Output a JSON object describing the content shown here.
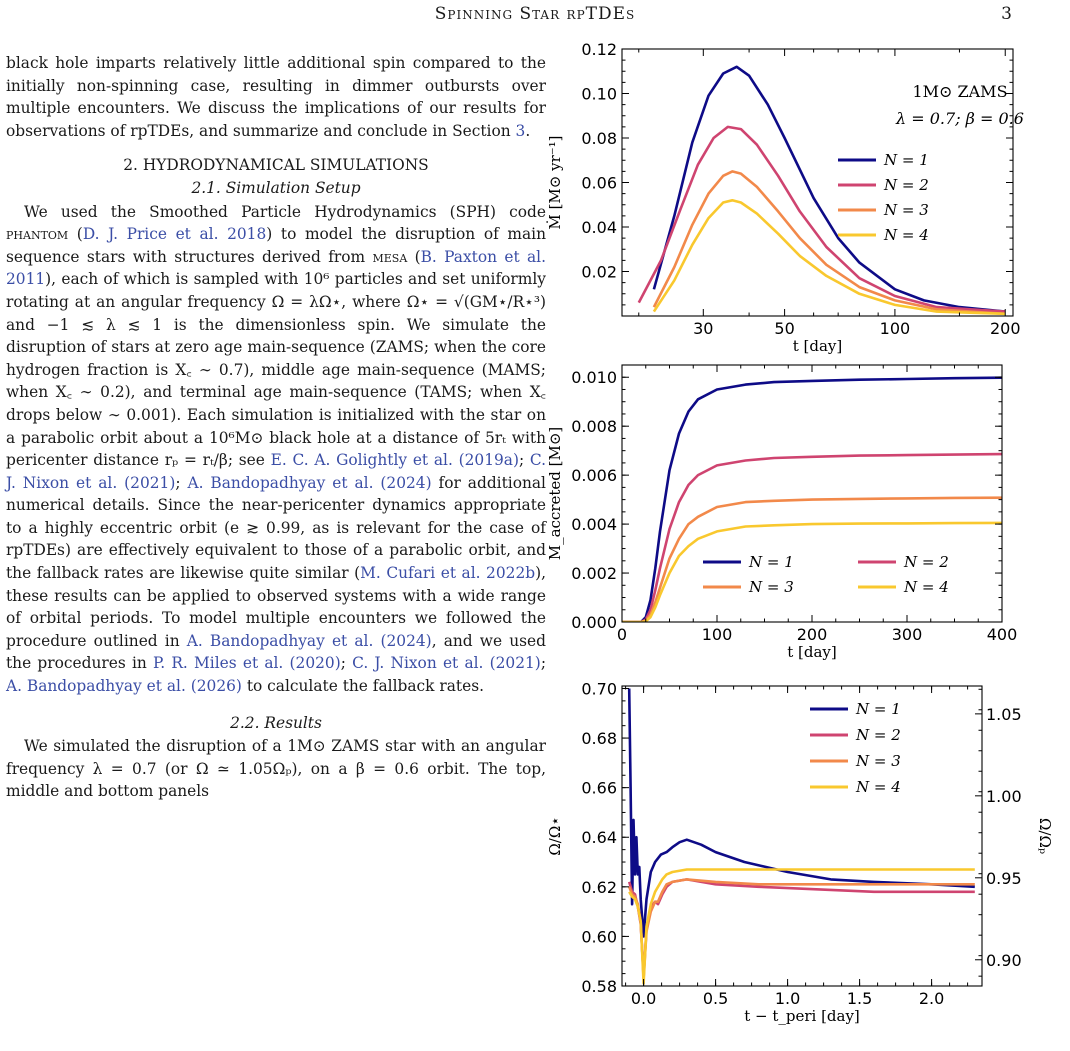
{
  "header": {
    "running_title": "Spinning Star rpTDEs",
    "page_number": "3"
  },
  "body": {
    "p1": {
      "a": "black hole imparts relatively little additional spin compared to the initially non-spinning case, resulting in dimmer outbursts over multiple encounters. We discuss the implications of our results for observations of rpTDEs, and summarize and conclude in Section ",
      "link": "3",
      "b": "."
    },
    "section_title": "2. HYDRODYNAMICAL SIMULATIONS",
    "subsection1_title": "2.1. Simulation Setup",
    "p2": {
      "s1": "We used the Smoothed Particle Hydrodynamics (SPH) code ",
      "pkg1": "phantom",
      "s2": " (",
      "c1": "D. J. Price et al. 2018",
      "s3": ") to model the disruption of main sequence stars with structures derived from ",
      "pkg2": "mesa",
      "s4": " (",
      "c2": "B. Paxton et al. 2011",
      "s5": "), each of which is sampled with 10⁶ particles and set uniformly rotating at an angular frequency Ω = λΩ⋆, where Ω⋆ = √(GM⋆/R⋆³) and −1 ≲ λ ≲ 1 is the dimensionless spin. We simulate the disruption of stars at zero age main-sequence (ZAMS; when the core hydrogen fraction is X꜀ ∼ 0.7), middle age main-sequence (MAMS; when X꜀ ∼ 0.2), and terminal age main-sequence (TAMS; when X꜀ drops below ∼ 0.001). Each simulation is initialized with the star on a parabolic orbit about a 10⁶M⊙ black hole at a distance of 5rₜ with pericenter distance rₚ = rₜ/β; see ",
      "c3": "E. C. A. Golightly et al. (2019a)",
      "s6": "; ",
      "c4": "C. J. Nixon et al. (2021)",
      "s7": "; ",
      "c5": "A. Bandopadhyay et al. (2024)",
      "s8": " for additional numerical details. Since the near-pericenter dynamics appropriate to a highly eccentric orbit (e ≳ 0.99, as is relevant for the case of rpTDEs) are effectively equivalent to those of a parabolic orbit, and the fallback rates are likewise quite similar (",
      "c6": "M. Cufari et al. 2022b",
      "s9": "), these results can be applied to observed systems with a wide range of orbital periods. To model multiple encounters we followed the procedure outlined in ",
      "c7": "A. Bandopadhyay et al. (2024)",
      "s10": ", and we used the procedures in ",
      "c8": "P. R. Miles et al. (2020)",
      "s11": "; ",
      "c9": "C. J. Nixon et al. (2021)",
      "s12": "; ",
      "c10": "A. Bandopadhyay et al. (2026)",
      "s13": " to calculate the fallback rates."
    },
    "subsection2_title": "2.2. Results",
    "p3": "We simulated the disruption of a 1M⊙ ZAMS star with an angular frequency λ = 0.7 (or Ω ≃ 1.05Ωₚ), on a β = 0.6 orbit. The top, middle and bottom panels"
  },
  "colors": {
    "N1": "#0e0b87",
    "N2": "#cf4470",
    "N3": "#f2894a",
    "N4": "#f9c82e"
  },
  "chart_data": [
    {
      "type": "line",
      "xscale": "log",
      "xlim": [
        18,
        210
      ],
      "ylim": [
        0.0,
        0.12
      ],
      "xlabel": "t [day]",
      "ylabel": "Ṁ [M⊙ yr⁻¹]",
      "xticks": [
        30,
        50,
        100,
        200
      ],
      "yticks": [
        0.02,
        0.04,
        0.06,
        0.08,
        0.1,
        0.12
      ],
      "ytick_labels": [
        "0.02",
        "0.04",
        "0.06",
        "0.08",
        "0.10",
        "0.12"
      ],
      "annotation": [
        "1M⊙ ZAMS",
        "λ = 0.7; β = 0.6"
      ],
      "legend_position": "right",
      "series": [
        {
          "name": "N = 1",
          "x": [
            22,
            25,
            28,
            31,
            34,
            37,
            40,
            45,
            50,
            60,
            70,
            80,
            100,
            120,
            150,
            200
          ],
          "y": [
            0.012,
            0.045,
            0.078,
            0.099,
            0.109,
            0.112,
            0.108,
            0.095,
            0.08,
            0.053,
            0.035,
            0.024,
            0.012,
            0.007,
            0.004,
            0.002
          ]
        },
        {
          "name": "N = 2",
          "x": [
            20,
            23,
            26,
            29,
            32,
            35,
            38,
            42,
            48,
            55,
            65,
            80,
            100,
            130,
            160,
            200
          ],
          "y": [
            0.006,
            0.025,
            0.048,
            0.068,
            0.08,
            0.085,
            0.084,
            0.077,
            0.063,
            0.047,
            0.031,
            0.017,
            0.009,
            0.004,
            0.003,
            0.002
          ]
        },
        {
          "name": "N = 3",
          "x": [
            22,
            25,
            28,
            31,
            34,
            36,
            38,
            42,
            48,
            55,
            65,
            80,
            100,
            130,
            160,
            200
          ],
          "y": [
            0.004,
            0.022,
            0.041,
            0.055,
            0.063,
            0.065,
            0.064,
            0.058,
            0.047,
            0.035,
            0.023,
            0.013,
            0.007,
            0.003,
            0.002,
            0.001
          ]
        },
        {
          "name": "N = 4",
          "x": [
            22,
            25,
            28,
            31,
            34,
            36,
            38,
            42,
            48,
            55,
            65,
            80,
            100,
            130,
            160,
            200
          ],
          "y": [
            0.002,
            0.016,
            0.032,
            0.044,
            0.051,
            0.052,
            0.051,
            0.046,
            0.037,
            0.027,
            0.018,
            0.01,
            0.005,
            0.002,
            0.0015,
            0.001
          ]
        }
      ]
    },
    {
      "type": "line",
      "xlim": [
        0,
        400
      ],
      "ylim": [
        0.0,
        0.0105
      ],
      "xlabel": "t [day]",
      "ylabel": "M_accreted [M⊙]",
      "xticks": [
        0,
        100,
        200,
        300,
        400
      ],
      "yticks": [
        0.0,
        0.002,
        0.004,
        0.006,
        0.008,
        0.01
      ],
      "ytick_labels": [
        "0.000",
        "0.002",
        "0.004",
        "0.006",
        "0.008",
        "0.010"
      ],
      "legend_position": "lower-right",
      "series": [
        {
          "name": "N = 1",
          "x": [
            0,
            20,
            25,
            30,
            35,
            40,
            50,
            60,
            70,
            80,
            100,
            130,
            160,
            200,
            250,
            300,
            350,
            400
          ],
          "y": [
            0.0,
            0.0,
            0.0002,
            0.0009,
            0.0022,
            0.0037,
            0.0062,
            0.0077,
            0.0086,
            0.0091,
            0.0095,
            0.0097,
            0.0098,
            0.00985,
            0.0099,
            0.00993,
            0.00996,
            0.00998
          ]
        },
        {
          "name": "N = 2",
          "x": [
            0,
            20,
            25,
            30,
            35,
            40,
            50,
            60,
            70,
            80,
            100,
            130,
            160,
            200,
            250,
            300,
            350,
            400
          ],
          "y": [
            0.0,
            0.0,
            0.0001,
            0.0005,
            0.0013,
            0.0022,
            0.0038,
            0.0049,
            0.0056,
            0.006,
            0.0064,
            0.0066,
            0.0067,
            0.00675,
            0.0068,
            0.00682,
            0.00684,
            0.00686
          ]
        },
        {
          "name": "N = 3",
          "x": [
            0,
            20,
            25,
            30,
            35,
            40,
            50,
            60,
            70,
            80,
            100,
            130,
            160,
            200,
            250,
            300,
            350,
            400
          ],
          "y": [
            0.0,
            0.0,
            5e-05,
            0.0003,
            0.0008,
            0.0014,
            0.0026,
            0.0034,
            0.004,
            0.0043,
            0.0047,
            0.0049,
            0.00495,
            0.005,
            0.00503,
            0.00505,
            0.00507,
            0.00508
          ]
        },
        {
          "name": "N = 4",
          "x": [
            0,
            20,
            25,
            30,
            35,
            40,
            50,
            60,
            70,
            80,
            100,
            130,
            160,
            200,
            250,
            300,
            350,
            400
          ],
          "y": [
            0.0,
            0.0,
            3e-05,
            0.0002,
            0.0006,
            0.0011,
            0.002,
            0.0027,
            0.0031,
            0.0034,
            0.0037,
            0.0039,
            0.00395,
            0.004,
            0.00402,
            0.00403,
            0.00404,
            0.00405
          ]
        }
      ]
    },
    {
      "type": "line",
      "xlim": [
        -0.15,
        2.35
      ],
      "ylim": [
        0.58,
        0.701
      ],
      "xlabel": "t − t_peri [day]",
      "ylabel": "Ω/Ω⋆",
      "ylabel_right": "Ω/Ωₚ",
      "xticks": [
        0.0,
        0.5,
        1.0,
        1.5,
        2.0
      ],
      "xtick_labels": [
        "0.0",
        "0.5",
        "1.0",
        "1.5",
        "2.0"
      ],
      "yticks": [
        0.58,
        0.6,
        0.62,
        0.64,
        0.66,
        0.68,
        0.7
      ],
      "ytick_labels": [
        "0.58",
        "0.60",
        "0.62",
        "0.64",
        "0.66",
        "0.68",
        "0.70"
      ],
      "yticks_right": [
        0.9,
        0.95,
        1.0,
        1.05
      ],
      "ytick_labels_right": [
        "0.90",
        "0.95",
        "1.00",
        "1.05"
      ],
      "ylim_right": [
        0.884,
        1.067
      ],
      "legend_position": "upper-right",
      "series": [
        {
          "name": "N = 1",
          "x": [
            -0.1,
            -0.09,
            -0.08,
            -0.07,
            -0.06,
            -0.05,
            -0.04,
            -0.03,
            -0.02,
            0.0,
            0.02,
            0.05,
            0.08,
            0.12,
            0.16,
            0.2,
            0.25,
            0.3,
            0.35,
            0.4,
            0.5,
            0.7,
            1.0,
            1.3,
            1.6,
            2.0,
            2.3
          ],
          "y": [
            0.7,
            0.66,
            0.613,
            0.647,
            0.625,
            0.64,
            0.625,
            0.628,
            0.615,
            0.6,
            0.615,
            0.626,
            0.63,
            0.633,
            0.634,
            0.636,
            0.638,
            0.639,
            0.638,
            0.637,
            0.634,
            0.63,
            0.626,
            0.623,
            0.622,
            0.621,
            0.62
          ]
        },
        {
          "name": "N = 2",
          "x": [
            -0.1,
            -0.08,
            -0.06,
            -0.04,
            -0.02,
            0.0,
            0.02,
            0.05,
            0.08,
            0.1,
            0.13,
            0.16,
            0.2,
            0.3,
            0.5,
            0.8,
            1.2,
            1.6,
            2.0,
            2.3
          ],
          "y": [
            0.622,
            0.618,
            0.617,
            0.612,
            0.605,
            0.584,
            0.603,
            0.612,
            0.614,
            0.613,
            0.617,
            0.62,
            0.622,
            0.623,
            0.621,
            0.62,
            0.619,
            0.618,
            0.618,
            0.618
          ]
        },
        {
          "name": "N = 3",
          "x": [
            -0.1,
            -0.08,
            -0.06,
            -0.04,
            -0.02,
            0.0,
            0.02,
            0.05,
            0.08,
            0.1,
            0.13,
            0.16,
            0.2,
            0.3,
            0.5,
            0.8,
            1.2,
            1.6,
            2.0,
            2.3
          ],
          "y": [
            0.62,
            0.617,
            0.616,
            0.613,
            0.606,
            0.583,
            0.602,
            0.61,
            0.614,
            0.614,
            0.618,
            0.621,
            0.622,
            0.623,
            0.622,
            0.621,
            0.621,
            0.621,
            0.621,
            0.621
          ]
        },
        {
          "name": "N = 4",
          "x": [
            -0.1,
            -0.08,
            -0.06,
            -0.04,
            -0.02,
            0.0,
            0.02,
            0.05,
            0.08,
            0.1,
            0.13,
            0.16,
            0.2,
            0.3,
            0.5,
            0.8,
            1.2,
            1.6,
            2.0,
            2.3
          ],
          "y": [
            0.618,
            0.616,
            0.615,
            0.612,
            0.606,
            0.581,
            0.604,
            0.613,
            0.618,
            0.62,
            0.623,
            0.625,
            0.626,
            0.627,
            0.627,
            0.627,
            0.627,
            0.627,
            0.627,
            0.627
          ]
        }
      ]
    }
  ]
}
